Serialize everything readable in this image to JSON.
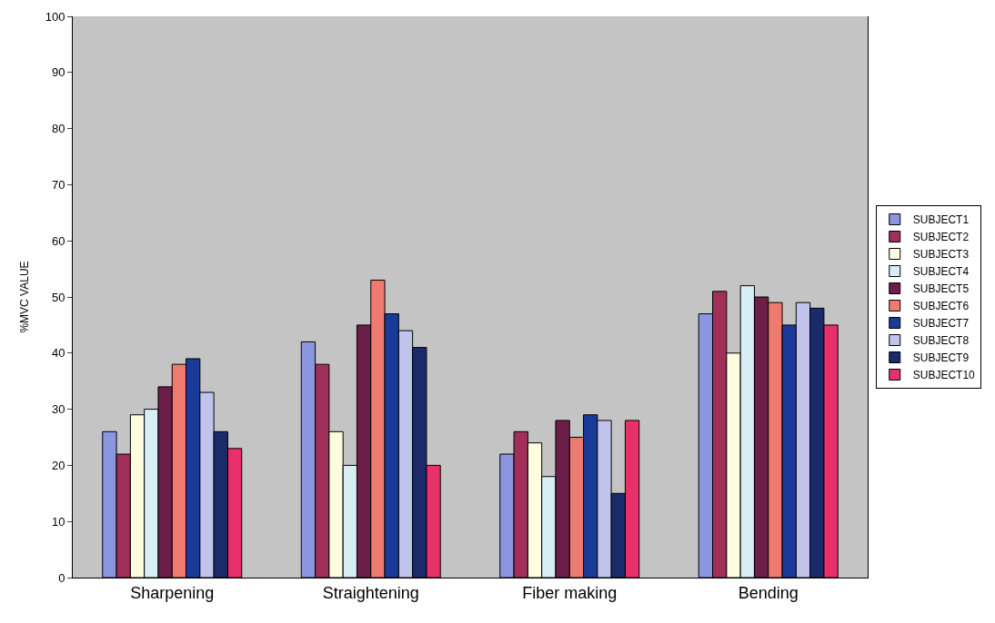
{
  "chart_data": {
    "type": "bar",
    "ylabel": "%MVC VALUE",
    "categories": [
      "Sharpening",
      "Straightening",
      "Fiber making",
      "Bending"
    ],
    "series": [
      {
        "name": "SUBJECT1",
        "color": "#8c96e0",
        "values": [
          26,
          42,
          22,
          47
        ]
      },
      {
        "name": "SUBJECT2",
        "color": "#a0305a",
        "values": [
          22,
          38,
          26,
          51
        ]
      },
      {
        "name": "SUBJECT3",
        "color": "#fffde0",
        "values": [
          29,
          26,
          24,
          40
        ]
      },
      {
        "name": "SUBJECT4",
        "color": "#d8eef5",
        "values": [
          30,
          20,
          18,
          52
        ]
      },
      {
        "name": "SUBJECT5",
        "color": "#6a1e48",
        "values": [
          34,
          45,
          28,
          50
        ]
      },
      {
        "name": "SUBJECT6",
        "color": "#f07a70",
        "values": [
          38,
          53,
          25,
          49
        ]
      },
      {
        "name": "SUBJECT7",
        "color": "#1a3a9a",
        "values": [
          39,
          47,
          29,
          45
        ]
      },
      {
        "name": "SUBJECT8",
        "color": "#c0c4ec",
        "values": [
          33,
          44,
          28,
          49
        ]
      },
      {
        "name": "SUBJECT9",
        "color": "#1a2a6a",
        "values": [
          26,
          41,
          15,
          48
        ]
      },
      {
        "name": "SUBJECT10",
        "color": "#e8306a",
        "values": [
          23,
          20,
          28,
          45
        ]
      }
    ],
    "ylim": [
      0,
      100
    ],
    "yticks": [
      0,
      10,
      20,
      30,
      40,
      50,
      60,
      70,
      80,
      90,
      100
    ],
    "grid": false,
    "legend": "right"
  }
}
